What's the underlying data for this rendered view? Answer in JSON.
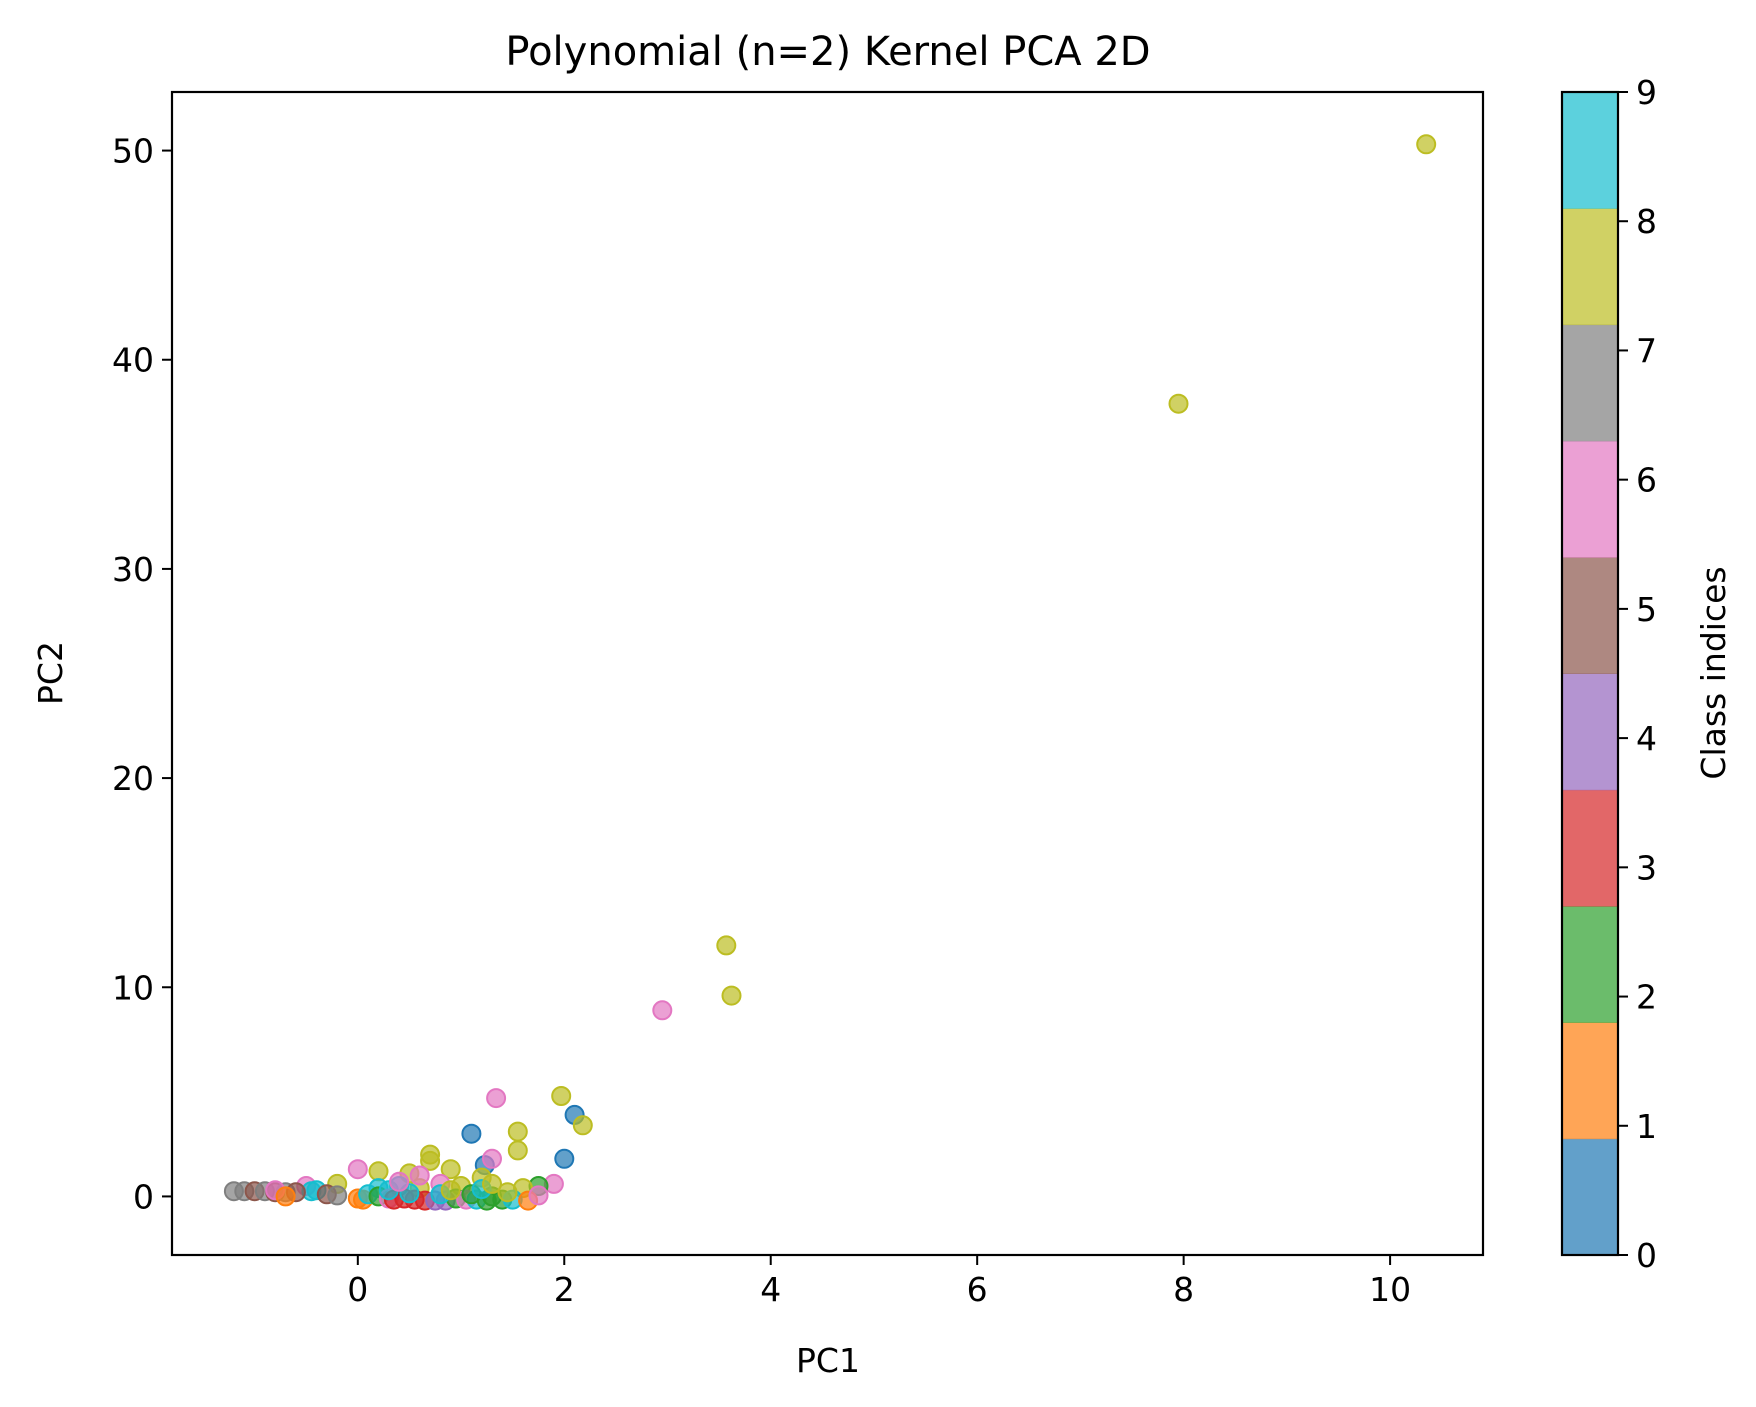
{
  "chart_data": {
    "type": "scatter",
    "title": "Polynomial (n=2) Kernel PCA 2D",
    "xlabel": "PC1",
    "ylabel": "PC2",
    "xlim": [
      -1.8,
      10.9
    ],
    "ylim": [
      -2.8,
      52.8
    ],
    "xticks": [
      0,
      2,
      4,
      6,
      8,
      10
    ],
    "yticks": [
      0,
      10,
      20,
      30,
      40,
      50
    ],
    "grid": false,
    "colorbar": {
      "label": "Class indices",
      "range": [
        0,
        9
      ],
      "ticks": [
        0,
        1,
        2,
        3,
        4,
        5,
        6,
        7,
        8,
        9
      ],
      "colors": [
        "#1f77b4",
        "#ff7f0e",
        "#2ca02c",
        "#d62728",
        "#9467bd",
        "#8c564b",
        "#e377c2",
        "#7f7f7f",
        "#bcbd22",
        "#17becf"
      ]
    },
    "points": [
      {
        "x": 10.35,
        "y": 50.3,
        "c": 8
      },
      {
        "x": 7.95,
        "y": 37.9,
        "c": 8
      },
      {
        "x": 3.57,
        "y": 12.0,
        "c": 8
      },
      {
        "x": 3.62,
        "y": 9.6,
        "c": 8
      },
      {
        "x": 2.95,
        "y": 8.9,
        "c": 6
      },
      {
        "x": 1.97,
        "y": 4.8,
        "c": 8
      },
      {
        "x": 2.1,
        "y": 3.9,
        "c": 0
      },
      {
        "x": 2.18,
        "y": 3.4,
        "c": 8
      },
      {
        "x": 1.34,
        "y": 4.7,
        "c": 6
      },
      {
        "x": 1.55,
        "y": 3.1,
        "c": 8
      },
      {
        "x": 1.55,
        "y": 2.2,
        "c": 8
      },
      {
        "x": 1.1,
        "y": 3.0,
        "c": 0
      },
      {
        "x": 2.0,
        "y": 1.8,
        "c": 0
      },
      {
        "x": 1.23,
        "y": 1.5,
        "c": 0
      },
      {
        "x": 1.3,
        "y": 1.8,
        "c": 6
      },
      {
        "x": 0.7,
        "y": 2.0,
        "c": 8
      },
      {
        "x": 0.7,
        "y": 1.7,
        "c": 8
      },
      {
        "x": 0.9,
        "y": 1.3,
        "c": 8
      },
      {
        "x": 0.5,
        "y": 1.1,
        "c": 8
      },
      {
        "x": 0.2,
        "y": 1.2,
        "c": 8
      },
      {
        "x": 0.0,
        "y": 1.3,
        "c": 6
      },
      {
        "x": 1.9,
        "y": 0.6,
        "c": 6
      },
      {
        "x": 1.75,
        "y": 0.5,
        "c": 2
      },
      {
        "x": 1.6,
        "y": 0.4,
        "c": 8
      },
      {
        "x": 1.2,
        "y": 0.9,
        "c": 8
      },
      {
        "x": 1.0,
        "y": 0.5,
        "c": 8
      },
      {
        "x": 0.8,
        "y": 0.6,
        "c": 6
      },
      {
        "x": 0.6,
        "y": 0.4,
        "c": 8
      },
      {
        "x": 0.4,
        "y": 0.5,
        "c": 9
      },
      {
        "x": 0.2,
        "y": 0.4,
        "c": 9
      },
      {
        "x": -0.2,
        "y": 0.6,
        "c": 8
      },
      {
        "x": -0.5,
        "y": 0.5,
        "c": 6
      },
      {
        "x": -0.4,
        "y": 0.3,
        "c": 9
      },
      {
        "x": -0.45,
        "y": 0.25,
        "c": 9
      },
      {
        "x": -1.2,
        "y": 0.25,
        "c": 7
      },
      {
        "x": -1.1,
        "y": 0.25,
        "c": 7
      },
      {
        "x": -1.0,
        "y": 0.25,
        "c": 5
      },
      {
        "x": -0.9,
        "y": 0.25,
        "c": 7
      },
      {
        "x": -0.8,
        "y": 0.2,
        "c": 5
      },
      {
        "x": -0.7,
        "y": 0.2,
        "c": 7
      },
      {
        "x": -0.6,
        "y": 0.2,
        "c": 5
      },
      {
        "x": -0.8,
        "y": 0.3,
        "c": 6
      },
      {
        "x": -0.7,
        "y": 0.0,
        "c": 1
      },
      {
        "x": -0.3,
        "y": 0.1,
        "c": 5
      },
      {
        "x": -0.2,
        "y": 0.05,
        "c": 7
      },
      {
        "x": 0.0,
        "y": -0.1,
        "c": 1
      },
      {
        "x": 0.05,
        "y": -0.15,
        "c": 1
      },
      {
        "x": 0.1,
        "y": 0.1,
        "c": 9
      },
      {
        "x": 0.2,
        "y": 0.0,
        "c": 2
      },
      {
        "x": 0.3,
        "y": -0.1,
        "c": 6
      },
      {
        "x": 0.35,
        "y": -0.15,
        "c": 3
      },
      {
        "x": 0.45,
        "y": -0.1,
        "c": 3
      },
      {
        "x": 0.55,
        "y": -0.15,
        "c": 3
      },
      {
        "x": 0.65,
        "y": -0.2,
        "c": 3
      },
      {
        "x": 0.75,
        "y": -0.2,
        "c": 4
      },
      {
        "x": 0.85,
        "y": -0.2,
        "c": 4
      },
      {
        "x": 0.95,
        "y": -0.1,
        "c": 2
      },
      {
        "x": 1.05,
        "y": -0.15,
        "c": 6
      },
      {
        "x": 1.15,
        "y": -0.15,
        "c": 9
      },
      {
        "x": 1.25,
        "y": -0.2,
        "c": 2
      },
      {
        "x": 1.4,
        "y": -0.15,
        "c": 2
      },
      {
        "x": 1.5,
        "y": -0.15,
        "c": 9
      },
      {
        "x": 1.65,
        "y": -0.2,
        "c": 1
      },
      {
        "x": 1.75,
        "y": 0.05,
        "c": 6
      },
      {
        "x": 0.5,
        "y": 0.15,
        "c": 9
      },
      {
        "x": 0.8,
        "y": 0.1,
        "c": 9
      },
      {
        "x": 1.1,
        "y": 0.1,
        "c": 2
      },
      {
        "x": 1.3,
        "y": 0.0,
        "c": 2
      },
      {
        "x": 1.45,
        "y": 0.2,
        "c": 8
      },
      {
        "x": 0.3,
        "y": 0.3,
        "c": 9
      },
      {
        "x": 0.9,
        "y": 0.3,
        "c": 8
      },
      {
        "x": 1.2,
        "y": 0.35,
        "c": 9
      },
      {
        "x": 0.6,
        "y": 1.0,
        "c": 6
      },
      {
        "x": 0.4,
        "y": 0.7,
        "c": 6
      },
      {
        "x": 1.3,
        "y": 0.6,
        "c": 8
      }
    ]
  }
}
